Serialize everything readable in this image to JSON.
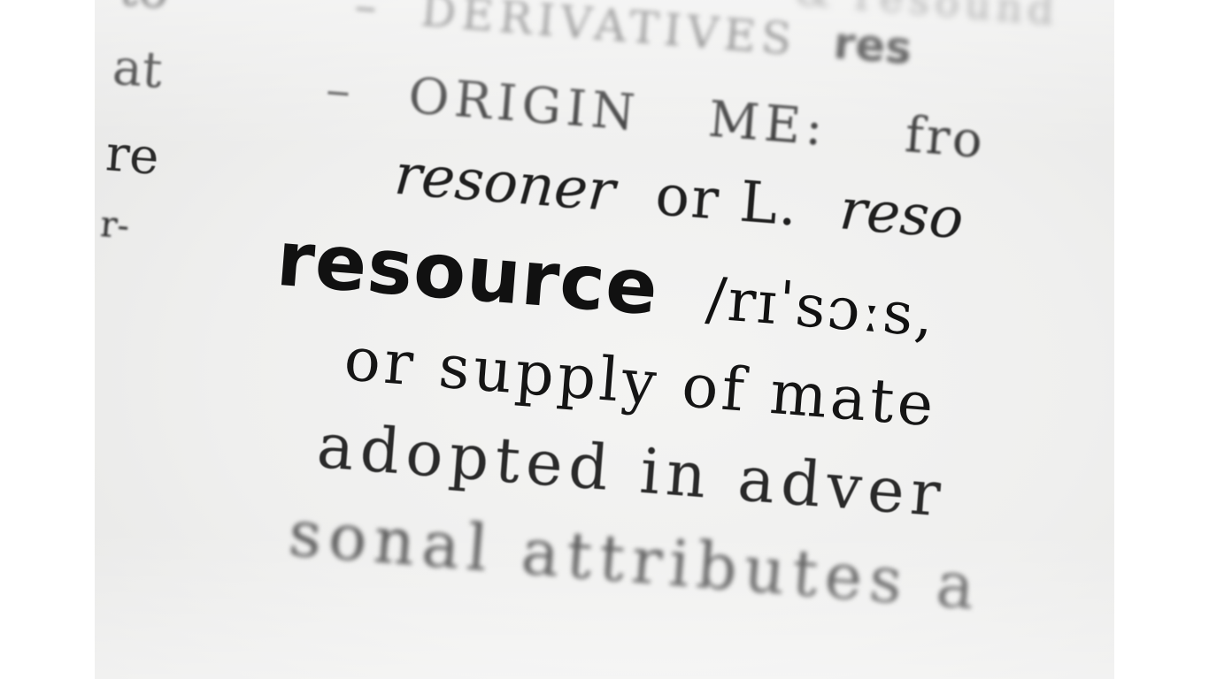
{
  "image": {
    "description_alt": "",
    "left_column": [
      "to",
      "at",
      "re",
      "r-"
    ],
    "entry": {
      "derivatives_line": {
        "dash": "–",
        "label": "DERIVATIVES",
        "tail": "res"
      },
      "origin_line": {
        "dash": "–",
        "label": "ORIGIN",
        "period": "ME:",
        "tail": "fro"
      },
      "origin_cont": {
        "italic": "resoner",
        "mid": "or L.",
        "italic_tail": "reso"
      },
      "headword": {
        "word": "resource",
        "pron": "/rɪˈsɔːs,"
      },
      "def1": "or supply of mate",
      "def2": "adopted in adver",
      "def3": "sonal attributes a",
      "top_fragment": "& resound"
    }
  }
}
